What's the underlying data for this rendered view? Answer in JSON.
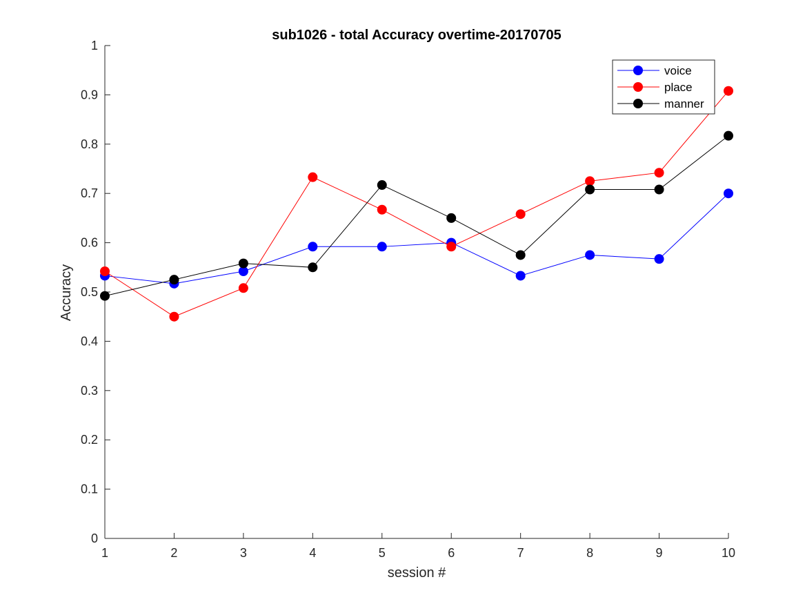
{
  "chart_data": {
    "type": "line",
    "title": "sub1026 - total Accuracy overtime-20170705",
    "xlabel": "session #",
    "ylabel": "Accuracy",
    "x": [
      1,
      2,
      3,
      4,
      5,
      6,
      7,
      8,
      9,
      10
    ],
    "xlim": [
      1,
      10
    ],
    "ylim": [
      0,
      1
    ],
    "xticks": [
      "1",
      "2",
      "3",
      "4",
      "5",
      "6",
      "7",
      "8",
      "9",
      "10"
    ],
    "yticks": [
      "0",
      "0.1",
      "0.2",
      "0.3",
      "0.4",
      "0.5",
      "0.6",
      "0.7",
      "0.8",
      "0.9",
      "1"
    ],
    "grid": false,
    "legend_position": "top-right",
    "series": [
      {
        "name": "voice",
        "color": "#0000ff",
        "values": [
          0.533,
          0.517,
          0.542,
          0.592,
          0.592,
          0.6,
          0.533,
          0.575,
          0.567,
          0.7
        ]
      },
      {
        "name": "place",
        "color": "#ff0000",
        "values": [
          0.542,
          0.45,
          0.508,
          0.733,
          0.667,
          0.592,
          0.658,
          0.725,
          0.742,
          0.908
        ]
      },
      {
        "name": "manner",
        "color": "#000000",
        "values": [
          0.492,
          0.525,
          0.558,
          0.55,
          0.717,
          0.65,
          0.575,
          0.708,
          0.708,
          0.817
        ]
      }
    ]
  }
}
